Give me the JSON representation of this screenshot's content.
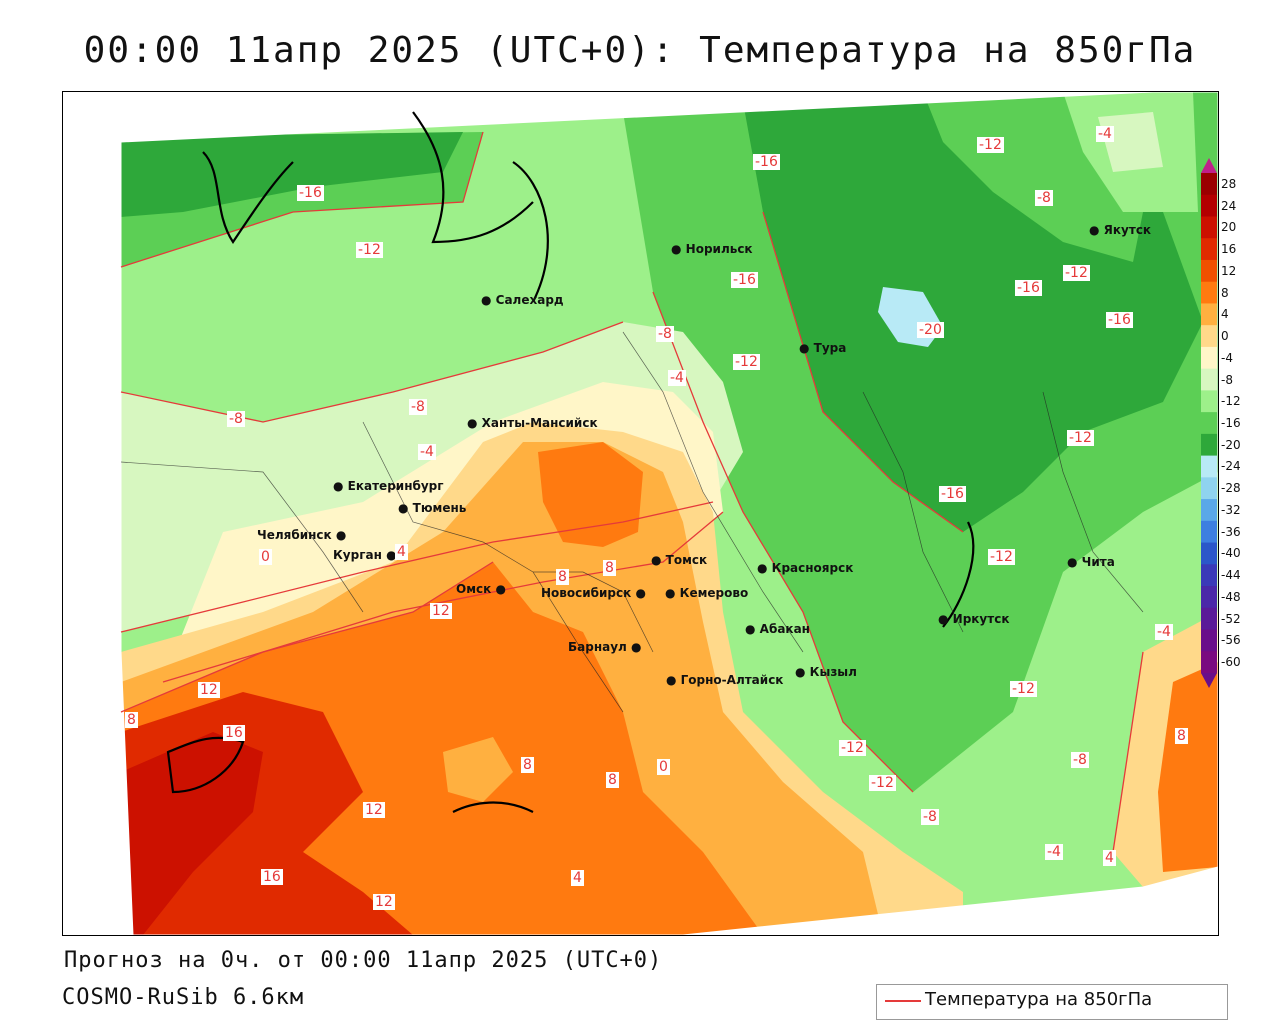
{
  "title": "00:00 11апр 2025 (UTC+0): Температура на 850гПа",
  "footer": {
    "forecast": "Прогноз на 0ч. от 00:00 11апр 2025 (UTC+0)",
    "model": "COSMO-RuSib 6.6км"
  },
  "legend": {
    "label": "Температура на 850гПа",
    "line_color": "#e53a3a"
  },
  "colorbar": {
    "labels": [
      "28",
      "24",
      "20",
      "16",
      "12",
      "8",
      "4",
      "0",
      "-4",
      "-8",
      "-12",
      "-16",
      "-20",
      "-24",
      "-28",
      "-32",
      "-36",
      "-40",
      "-44",
      "-48",
      "-52",
      "-56",
      "-60"
    ],
    "colors": [
      "#9a0000",
      "#b30000",
      "#cc1100",
      "#e02a00",
      "#f05000",
      "#ff7a10",
      "#ffb040",
      "#ffd98a",
      "#fff6c8",
      "#d7f7c0",
      "#9df08a",
      "#5ccf55",
      "#2ea83a",
      "#b8eaf6",
      "#8fd3ef",
      "#5aa8e8",
      "#3d7fe0",
      "#2b57c9",
      "#3a3ab8",
      "#4a28a8",
      "#5a1a98",
      "#6a0e8a",
      "#7a0a80"
    ]
  },
  "cities": [
    {
      "name": "Салехард"
    },
    {
      "name": "Норильск"
    },
    {
      "name": "Тура"
    },
    {
      "name": "Якутск"
    },
    {
      "name": "Ханты-Мансийск"
    },
    {
      "name": "Екатеринбург"
    },
    {
      "name": "Тюмень"
    },
    {
      "name": "Челябинск"
    },
    {
      "name": "Курган"
    },
    {
      "name": "Омск"
    },
    {
      "name": "Новосибирск"
    },
    {
      "name": "Томск"
    },
    {
      "name": "Кемерово"
    },
    {
      "name": "Барнаул"
    },
    {
      "name": "Горно-Алтайск"
    },
    {
      "name": "Красноярск"
    },
    {
      "name": "Абакан"
    },
    {
      "name": "Кызыл"
    },
    {
      "name": "Иркутск"
    },
    {
      "name": "Чита"
    }
  ],
  "contour_labels": [
    "-16",
    "-12",
    "-8",
    "-4",
    "0",
    "4",
    "8",
    "12",
    "16",
    "-20"
  ]
}
